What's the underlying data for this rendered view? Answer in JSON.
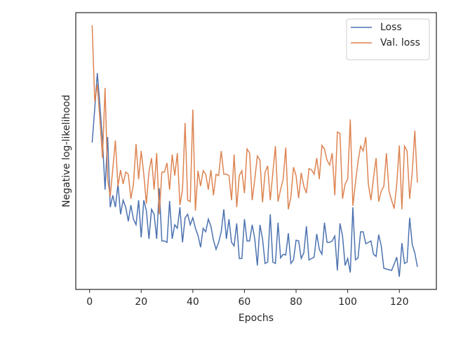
{
  "chart_data": {
    "type": "line",
    "xlabel": "Epochs",
    "ylabel": "Negative log-likelihood",
    "x": [
      1,
      2,
      3,
      4,
      5,
      6,
      7,
      8,
      9,
      10,
      11,
      12,
      13,
      14,
      15,
      16,
      17,
      18,
      19,
      20,
      21,
      22,
      23,
      24,
      25,
      26,
      27,
      28,
      29,
      30,
      31,
      32,
      33,
      34,
      35,
      36,
      37,
      38,
      39,
      40,
      41,
      42,
      43,
      44,
      45,
      46,
      47,
      48,
      49,
      50,
      51,
      52,
      53,
      54,
      55,
      56,
      57,
      58,
      59,
      60,
      61,
      62,
      63,
      64,
      65,
      66,
      67,
      68,
      69,
      70,
      71,
      72,
      73,
      74,
      75,
      76,
      77,
      78,
      79,
      80,
      81,
      82,
      83,
      84,
      85,
      86,
      87,
      88,
      89,
      90,
      91,
      92,
      93,
      94,
      95,
      96,
      97,
      98,
      99,
      100,
      101,
      102,
      103,
      104,
      105,
      106,
      107,
      108,
      109,
      110,
      111,
      112,
      113,
      114,
      115,
      116,
      117,
      118,
      119,
      120,
      121,
      122,
      123,
      124,
      125,
      126,
      127
    ],
    "series": [
      {
        "name": "Loss",
        "color": "#4c72b0",
        "values": [
          209,
          257,
          308,
          262,
          212,
          142,
          217,
          117,
          134,
          117,
          150,
          107,
          127,
          117,
          97,
          120,
          100,
          92,
          127,
          74,
          127,
          112,
          72,
          114,
          107,
          72,
          144,
          69,
          69,
          67,
          126,
          72,
          92,
          87,
          117,
          67,
          102,
          107,
          92,
          102,
          87,
          77,
          60,
          87,
          82,
          100,
          90,
          70,
          57,
          67,
          82,
          114,
          72,
          100,
          67,
          62,
          94,
          44,
          44,
          100,
          69,
          69,
          92,
          72,
          34,
          92,
          72,
          37,
          39,
          107,
          39,
          37,
          95,
          45,
          50,
          49,
          80,
          37,
          42,
          70,
          69,
          44,
          52,
          90,
          42,
          44,
          46,
          79,
          57,
          50,
          95,
          67,
          67,
          69,
          76,
          27,
          94,
          76,
          34,
          44,
          24,
          117,
          42,
          45,
          82,
          82,
          65,
          67,
          69,
          50,
          47,
          78,
          62,
          30,
          29,
          28,
          27,
          36,
          46,
          18,
          66,
          37,
          39,
          102,
          64,
          52,
          32
        ]
      },
      {
        "name": "Val. loss",
        "color": "#dd8452",
        "values": [
          376,
          267,
          292,
          242,
          187,
          287,
          157,
          132,
          172,
          212,
          147,
          170,
          150,
          167,
          164,
          129,
          150,
          207,
          157,
          197,
          164,
          122,
          167,
          187,
          142,
          194,
          107,
          167,
          167,
          180,
          142,
          192,
          162,
          194,
          120,
          142,
          237,
          127,
          125,
          256,
          112,
          169,
          147,
          169,
          164,
          142,
          170,
          134,
          164,
          162,
          197,
          164,
          164,
          162,
          127,
          192,
          117,
          162,
          169,
          137,
          200,
          194,
          127,
          157,
          190,
          184,
          124,
          167,
          176,
          127,
          166,
          204,
          125,
          142,
          157,
          202,
          114,
          132,
          174,
          162,
          130,
          166,
          147,
          137,
          172,
          170,
          164,
          187,
          157,
          205,
          200,
          184,
          177,
          194,
          134,
          224,
          222,
          129,
          150,
          157,
          242,
          119,
          152,
          182,
          204,
          197,
          217,
          150,
          127,
          159,
          187,
          125,
          140,
          147,
          194,
          140,
          127,
          115,
          150,
          205,
          114,
          204,
          197,
          129,
          167,
          226,
          152
        ]
      }
    ],
    "xlim": [
      -5.35,
      134.35
    ],
    "ylim": [
      0,
      394
    ],
    "xticks": [
      0,
      20,
      40,
      60,
      80,
      100,
      120
    ],
    "legend": "upper right"
  }
}
